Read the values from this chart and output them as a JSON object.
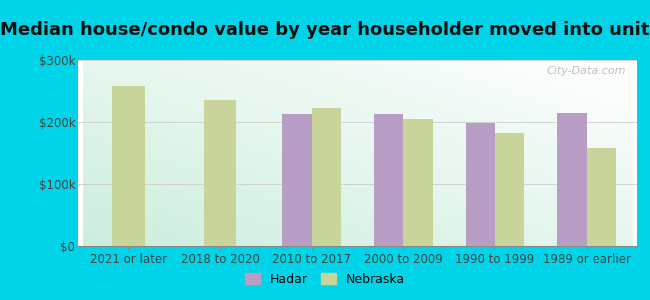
{
  "title": "Median house/condo value by year householder moved into unit",
  "categories": [
    "2021 or later",
    "2018 to 2020",
    "2010 to 2017",
    "2000 to 2009",
    "1990 to 1999",
    "1989 or earlier"
  ],
  "hadar_values": [
    null,
    null,
    213000,
    213000,
    198000,
    215000
  ],
  "nebraska_values": [
    258000,
    235000,
    222000,
    205000,
    183000,
    158000
  ],
  "hadar_color": "#b89ec4",
  "nebraska_color": "#c8d49a",
  "background_outer": "#00d4e8",
  "background_inner_topleft": "#d8f0d8",
  "background_inner_bottomright": "#f8fff8",
  "ylim": [
    0,
    300000
  ],
  "yticks": [
    0,
    100000,
    200000,
    300000
  ],
  "ytick_labels": [
    "$0",
    "$100k",
    "$200k",
    "$300k"
  ],
  "title_fontsize": 13,
  "tick_fontsize": 8.5,
  "legend_labels": [
    "Hadar",
    "Nebraska"
  ],
  "bar_width": 0.32,
  "watermark_text": "City-Data.com"
}
